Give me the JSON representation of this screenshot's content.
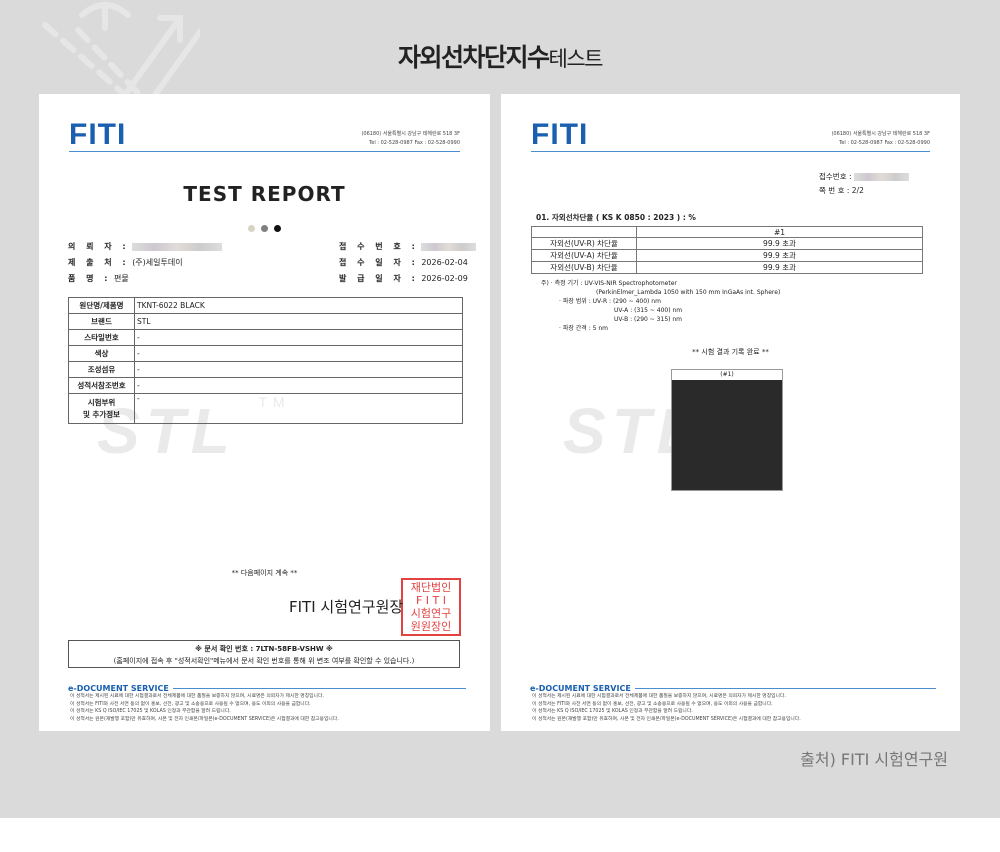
{
  "title": {
    "bold": "자외선차단지수",
    "normal": "테스트"
  },
  "source": "출처) FITI 시험연구원",
  "logo": "FITI",
  "address": [
    "(06180) 서울특별시 강남구 테헤란로 518 3F",
    "Tel : 02-528-0987   Fax : 02-528-0990"
  ],
  "watermark": "STL",
  "watermark_tm": "TM",
  "page1": {
    "heading": "TEST REPORT",
    "dot_colors": [
      "#d8d4c4",
      "#808080",
      "#111111"
    ],
    "fields_left": [
      {
        "label": "의 뢰 자 :",
        "value": ""
      },
      {
        "label": "제 출 처 :",
        "value": "(주)세일투데이"
      },
      {
        "label": "품    명 :",
        "value": "편물"
      }
    ],
    "fields_right": [
      {
        "label": "접 수 번 호 :",
        "value": ""
      },
      {
        "label": "접 수 일 자 :",
        "value": "2026-02-04"
      },
      {
        "label": "발 급 일 자 :",
        "value": "2026-02-09"
      }
    ],
    "table": [
      [
        "원단명/제품명",
        "TKNT-6022 BLACK"
      ],
      [
        "브랜드",
        "STL"
      ],
      [
        "스타일번호",
        "-"
      ],
      [
        "색상",
        "-"
      ],
      [
        "조성섬유",
        "-"
      ],
      [
        "성적서참조번호",
        "-"
      ],
      [
        "시험부위\n및 추가정보",
        "-"
      ]
    ],
    "continued": "** 다음페이지 계속 **",
    "signature": "FITI 시험연구원장",
    "stamp": "재단법인 FITI 시험연구원 원장의인",
    "verify_line1": "※ 문서 확인 번호 : 7LTN-58FB-VSHW ※",
    "verify_line2": "(홈페이지에 접속 후 \"성적서확인\"메뉴에서 문서 확인 번호를 통해 위 변조 여부를 확인할 수 있습니다.)"
  },
  "eds": {
    "heading": "e-DOCUMENT SERVICE",
    "lines": [
      "이 성적서는 제시된 시료에 대한 시험결과로서 전체제품에 대한 품질을 보증하지 않으며, 시료명은 의뢰자가 제시한 명칭입니다.",
      "이 성적서는 FITI와 사전 서면 동의 없이 홍보, 선전, 광고 및 소송용으로 사용될 수 없으며, 용도 이외의 사용을 금합니다.",
      "이 성적서는 KS Q ISO/IEC 17025 및 KOLAS 인정과 무관함을 알려 드립니다.",
      "이 성적서는 원본(재발행 포함)만 유효하며, 사본 및 전자 인쇄본/파일본(e-DOCUMENT SERVICE)은 시험결과에 대한 참고용입니다."
    ]
  },
  "page2": {
    "receipt_label": "접수번호 :",
    "receipt_value": "",
    "page_label": "쪽 번 호 :",
    "page_value": "2/2",
    "section": "01.  자외선차단율 ( KS K 0850 : 2023 ) : %",
    "col": "#1",
    "rows": [
      [
        "자외선(UV-R) 차단율",
        "99.9 초과"
      ],
      [
        "자외선(UV-A) 차단율",
        "99.9 초과"
      ],
      [
        "자외선(UV-B) 차단율",
        "99.9 초과"
      ]
    ],
    "notes": [
      "주)  · 측정 기기 : UV-VIS-NIR Spectrophotometer",
      "(PerkinElmer_Lambda 1050 with 150 mm InGaAs int. Sphere)",
      "· 파장 범위 : UV-R : (290 ~ 400) nm",
      "UV-A : (315 ~ 400) nm",
      "UV-B : (290 ~ 315) nm",
      "· 파장 간격 : 5 nm"
    ],
    "done": "** 시험 결과 기록 완료 **",
    "sample_label": "(#1)"
  }
}
